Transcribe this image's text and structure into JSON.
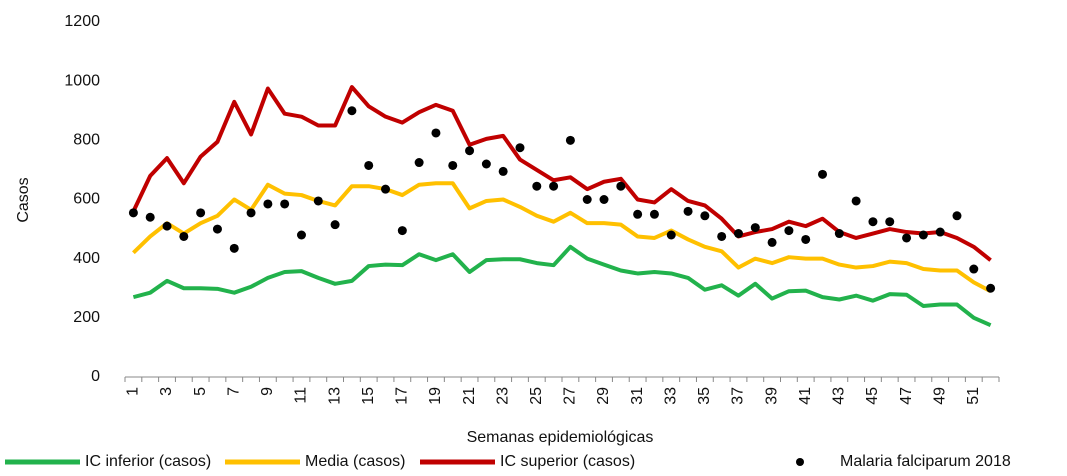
{
  "chart_data": {
    "type": "line",
    "x_label": "Semanas epidemiológicas",
    "y_label": "Casos",
    "categories": [
      "1",
      null,
      "3",
      null,
      "5",
      null,
      "7",
      null,
      "9",
      null,
      "11",
      null,
      "13",
      null,
      "15",
      null,
      "17",
      null,
      "19",
      null,
      "21",
      null,
      "23",
      null,
      "25",
      null,
      "27",
      null,
      "29",
      null,
      "31",
      null,
      "33",
      null,
      "35",
      null,
      "37",
      null,
      "39",
      null,
      "41",
      null,
      "43",
      null,
      "45",
      null,
      "47",
      null,
      "49",
      null,
      "51",
      null
    ],
    "ylim": [
      0,
      1200
    ],
    "yticks": [
      0,
      200,
      400,
      600,
      800,
      1000,
      1200
    ],
    "grid": false,
    "legend": "bottom",
    "series": [
      {
        "name": "IC inferior (casos)",
        "color": "#22b24c",
        "type": "line",
        "values": [
          270,
          285,
          325,
          300,
          300,
          298,
          285,
          305,
          335,
          355,
          358,
          335,
          315,
          325,
          375,
          380,
          378,
          415,
          395,
          415,
          355,
          395,
          398,
          398,
          385,
          378,
          440,
          400,
          380,
          360,
          350,
          355,
          350,
          335,
          295,
          310,
          275,
          315,
          265,
          290,
          292,
          270,
          262,
          275,
          258,
          280,
          278,
          240,
          245,
          245,
          200,
          175
        ]
      },
      {
        "name": "Media (casos)",
        "color": "#ffc000",
        "type": "line",
        "values": [
          420,
          475,
          520,
          485,
          520,
          545,
          600,
          565,
          650,
          620,
          615,
          595,
          580,
          645,
          645,
          635,
          615,
          650,
          655,
          655,
          570,
          595,
          600,
          575,
          545,
          525,
          555,
          520,
          520,
          515,
          475,
          470,
          495,
          465,
          440,
          425,
          370,
          400,
          385,
          405,
          400,
          400,
          380,
          370,
          375,
          390,
          385,
          365,
          360,
          360,
          320,
          290
        ]
      },
      {
        "name": "IC superior (casos)",
        "color": "#c00000",
        "type": "line",
        "values": [
          560,
          680,
          740,
          655,
          745,
          795,
          930,
          820,
          975,
          890,
          880,
          850,
          850,
          980,
          915,
          880,
          860,
          895,
          920,
          900,
          785,
          805,
          815,
          735,
          700,
          665,
          675,
          635,
          660,
          670,
          600,
          590,
          635,
          595,
          580,
          535,
          475,
          490,
          500,
          525,
          510,
          535,
          490,
          470,
          485,
          500,
          490,
          485,
          490,
          470,
          440,
          395
        ]
      },
      {
        "name": "Malaria falciparum 2018",
        "color": "#000000",
        "type": "scatter",
        "values": [
          555,
          540,
          510,
          475,
          555,
          500,
          435,
          555,
          585,
          585,
          480,
          595,
          515,
          900,
          715,
          635,
          495,
          725,
          825,
          715,
          765,
          720,
          695,
          775,
          645,
          645,
          800,
          600,
          600,
          645,
          550,
          550,
          480,
          560,
          545,
          475,
          485,
          505,
          455,
          495,
          465,
          685,
          485,
          595,
          525,
          525,
          470,
          480,
          490,
          545,
          365,
          300
        ]
      }
    ]
  }
}
